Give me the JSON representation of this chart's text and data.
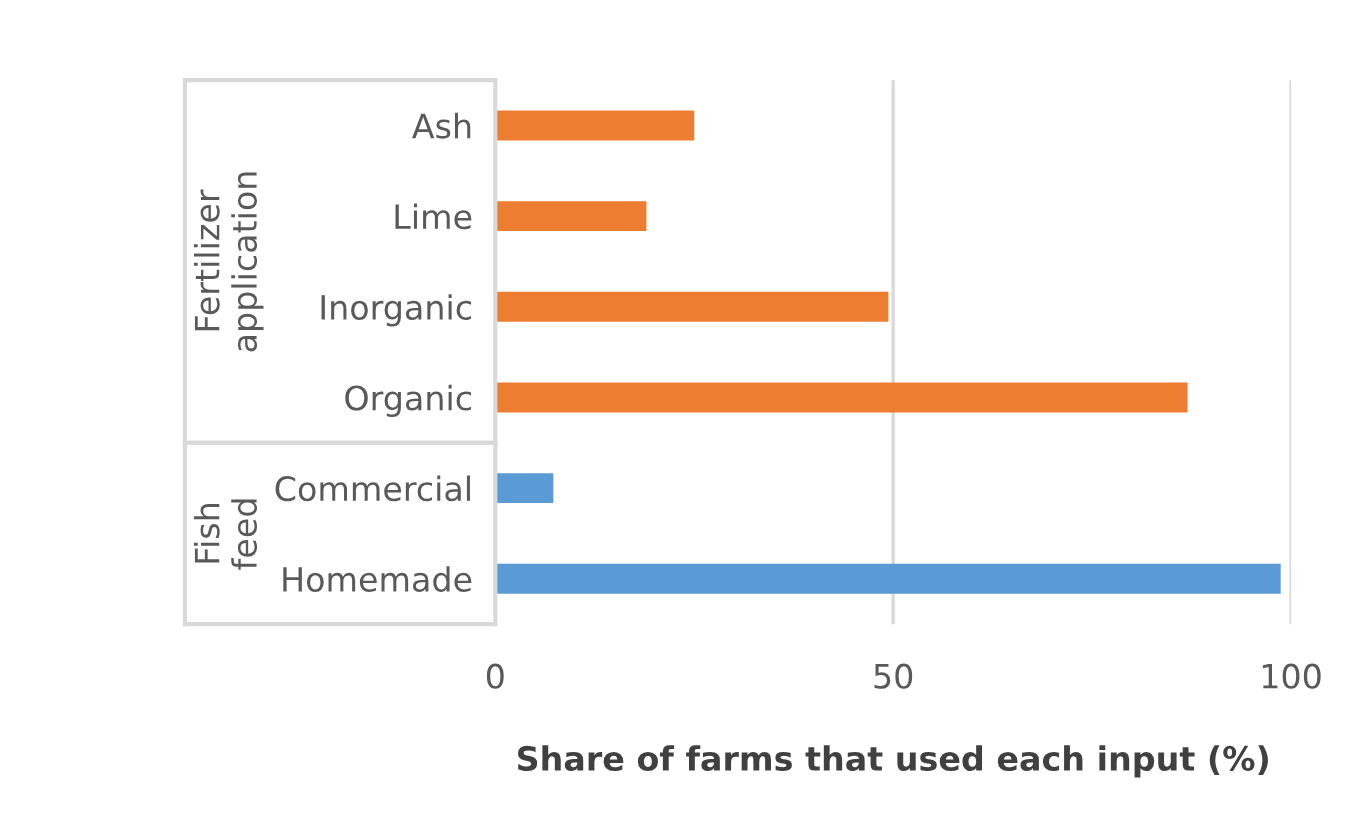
{
  "chart_data": {
    "type": "bar",
    "orientation": "horizontal",
    "xlabel": "Share of farms that used each input (%)",
    "categories": [
      "Ash",
      "Lime",
      "Inorganic",
      "Organic",
      "Commercial",
      "Homemade"
    ],
    "values": [
      25,
      19,
      49.4,
      87,
      7.3,
      98.7
    ],
    "colors": [
      "#ed7d31",
      "#ed7d31",
      "#ed7d31",
      "#ed7d31",
      "#5b9bd5",
      "#5b9bd5"
    ],
    "annotations": [
      "Fertilizer application",
      "Fish feed"
    ],
    "xlim": [
      0,
      100
    ],
    "xticks": [
      0,
      50,
      100
    ],
    "grid": "x"
  }
}
